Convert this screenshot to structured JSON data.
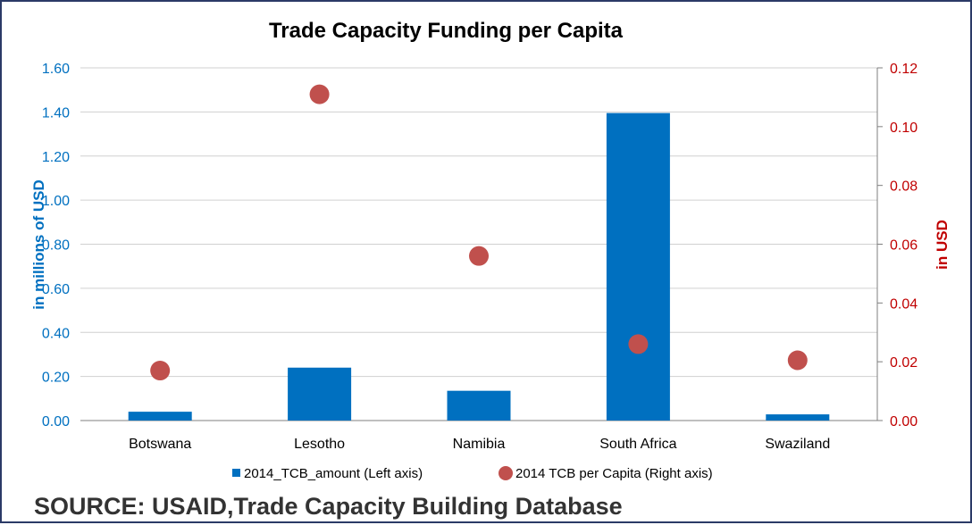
{
  "source_note": "SOURCE: USAID,Trade Capacity Building Database",
  "colors": {
    "bar": "#0070c0",
    "dot": "#c0504d",
    "left_axis_text": "#0070c0",
    "right_axis_text": "#c00000",
    "grid": "#d0d0d0",
    "frame": "#2b3a67"
  },
  "chart_data": {
    "type": "bar",
    "title": "Trade Capacity Funding per Capita",
    "categories": [
      "Botswana",
      "Lesotho",
      "Namibia",
      "South Africa",
      "Swaziland"
    ],
    "series": [
      {
        "name": "2014_TCB_amount (Left axis)",
        "type": "bar",
        "axis": "left",
        "values": [
          0.04,
          0.24,
          0.135,
          1.395,
          0.028
        ]
      },
      {
        "name": "2014 TCB per Capita (Right axis)",
        "type": "scatter",
        "axis": "right",
        "values": [
          0.017,
          0.111,
          0.056,
          0.026,
          0.0205
        ]
      }
    ],
    "ylabel": "in millions of USD",
    "y2label": "in USD",
    "ylim": [
      0,
      1.6
    ],
    "y2lim": [
      0,
      0.12
    ],
    "yticks": [
      "0.00",
      "0.20",
      "0.40",
      "0.60",
      "0.80",
      "1.00",
      "1.20",
      "1.40",
      "1.60"
    ],
    "y2ticks": [
      "0.00",
      "0.02",
      "0.04",
      "0.06",
      "0.08",
      "0.10",
      "0.12"
    ],
    "grid": true,
    "legend_position": "bottom"
  }
}
